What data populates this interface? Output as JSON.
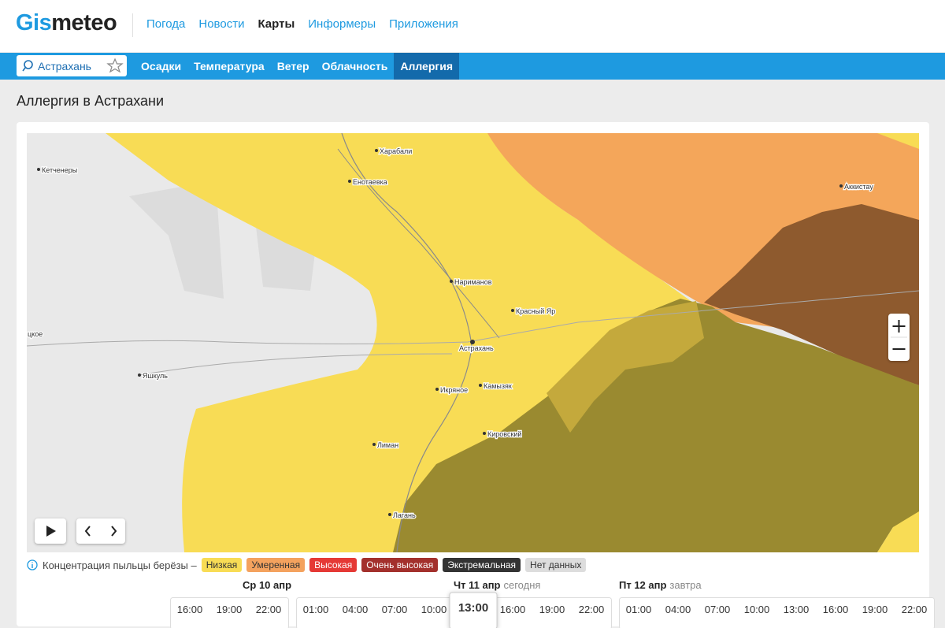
{
  "header": {
    "logo": {
      "accent": "Gis",
      "rest": "meteo"
    },
    "nav": [
      "Погода",
      "Новости",
      "Карты",
      "Информеры",
      "Приложения"
    ],
    "active_nav": 2
  },
  "toolbar": {
    "search": "Астрахань",
    "tabs": [
      "Осадки",
      "Температура",
      "Ветер",
      "Облачность",
      "Аллергия"
    ],
    "active_tab": 4
  },
  "page": {
    "title": "Аллергия в Астрахани"
  },
  "map": {
    "places": [
      "Харабали",
      "Енотаевка",
      "Кетченеры",
      "Аккистау",
      "Нариманов",
      "Красный Яр",
      "Астрахань",
      "Камызяк",
      "Икряное",
      "Кировский",
      "Яшкуль",
      "Лиман",
      "Лагань",
      "цкое"
    ]
  },
  "legend": {
    "caption": "Концентрация пыльцы берёзы –",
    "levels": [
      {
        "name": "Низкая",
        "color": "#f8dc55"
      },
      {
        "name": "Умеренная",
        "color": "#f4a25e"
      },
      {
        "name": "Высокая",
        "color": "#e53935"
      },
      {
        "name": "Очень высокая",
        "color": "#a3302c"
      },
      {
        "name": "Экстремальная",
        "color": "#333333"
      },
      {
        "name": "Нет данных",
        "color": "#dddddd"
      }
    ]
  },
  "timeline": {
    "days": [
      {
        "label": "Ср 10 апр",
        "times": [
          "16:00",
          "19:00",
          "22:00"
        ]
      },
      {
        "label": "Чт 11 апр",
        "note": "сегодня",
        "times": [
          "01:00",
          "04:00",
          "07:00",
          "10:00",
          "13:00",
          "16:00",
          "19:00",
          "22:00"
        ]
      },
      {
        "label": "Пт 12 апр",
        "note": "завтра",
        "times": [
          "01:00",
          "04:00",
          "07:00",
          "10:00",
          "13:00",
          "16:00",
          "19:00",
          "22:00"
        ]
      }
    ],
    "selected": {
      "day": 1,
      "time": 4
    }
  }
}
